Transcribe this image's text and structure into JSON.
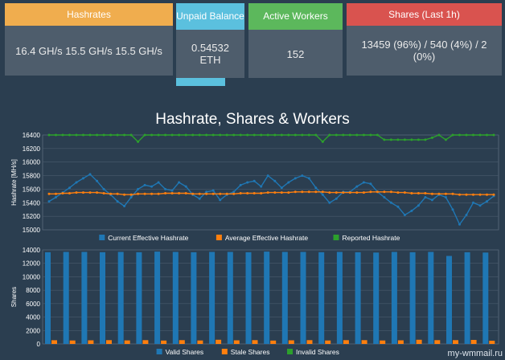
{
  "cards": {
    "hashrates": {
      "title": "Hashrates",
      "value": "16.4 GH/s  15.5 GH/s   15.5 GH/s",
      "color": "#f0ad4e"
    },
    "unpaid": {
      "title": "Unpaid Balance",
      "value": "0.54532 ETH",
      "color": "#5bc0de"
    },
    "workers": {
      "title": "Active Workers",
      "value": "152",
      "color": "#5cb85c"
    },
    "shares": {
      "title": "Shares (Last 1h)",
      "value": "13459 (96%) / 540 (4%) / 2 (0%)",
      "color": "#d9534f"
    }
  },
  "charts_title": "Hashrate, Shares & Workers",
  "watermark": "my-wmmail.ru",
  "chart_data": [
    {
      "type": "line",
      "ylabel": "Hashrate [MH/s]",
      "ylim": [
        15000,
        16400
      ],
      "yticks": [
        15000,
        15200,
        15400,
        15600,
        15800,
        16000,
        16200,
        16400
      ],
      "grid": true,
      "legend_position": "bottom",
      "series": [
        {
          "name": "Current Effective Hashrate",
          "color": "#1f77b4",
          "values": [
            15420,
            15480,
            15550,
            15620,
            15700,
            15760,
            15820,
            15720,
            15600,
            15520,
            15420,
            15350,
            15480,
            15600,
            15660,
            15640,
            15700,
            15600,
            15580,
            15700,
            15640,
            15520,
            15460,
            15560,
            15580,
            15440,
            15520,
            15560,
            15660,
            15700,
            15720,
            15640,
            15800,
            15720,
            15620,
            15700,
            15760,
            15800,
            15760,
            15620,
            15520,
            15400,
            15460,
            15560,
            15560,
            15640,
            15700,
            15680,
            15560,
            15480,
            15400,
            15340,
            15220,
            15280,
            15360,
            15480,
            15440,
            15520,
            15480,
            15300,
            15080,
            15220,
            15400,
            15360,
            15420,
            15500
          ]
        },
        {
          "name": "Average Effective Hashrate",
          "color": "#ff7f0e",
          "values": [
            15530,
            15530,
            15540,
            15540,
            15550,
            15550,
            15550,
            15550,
            15540,
            15530,
            15530,
            15520,
            15520,
            15530,
            15530,
            15530,
            15530,
            15540,
            15540,
            15540,
            15540,
            15530,
            15530,
            15530,
            15530,
            15530,
            15530,
            15530,
            15540,
            15540,
            15540,
            15540,
            15550,
            15550,
            15550,
            15550,
            15560,
            15560,
            15560,
            15560,
            15560,
            15550,
            15550,
            15550,
            15550,
            15550,
            15550,
            15560,
            15560,
            15560,
            15560,
            15550,
            15550,
            15540,
            15540,
            15540,
            15530,
            15530,
            15530,
            15530,
            15520,
            15520,
            15520,
            15520,
            15520,
            15520
          ]
        },
        {
          "name": "Reported Hashrate",
          "color": "#2ca02c",
          "values": [
            16400,
            16400,
            16400,
            16400,
            16400,
            16400,
            16400,
            16400,
            16400,
            16400,
            16400,
            16400,
            16400,
            16300,
            16400,
            16400,
            16400,
            16400,
            16400,
            16400,
            16400,
            16400,
            16400,
            16400,
            16400,
            16400,
            16400,
            16400,
            16400,
            16400,
            16400,
            16400,
            16400,
            16400,
            16400,
            16400,
            16400,
            16400,
            16400,
            16400,
            16300,
            16400,
            16400,
            16400,
            16400,
            16400,
            16400,
            16400,
            16400,
            16330,
            16330,
            16330,
            16330,
            16330,
            16330,
            16330,
            16360,
            16400,
            16330,
            16400,
            16400,
            16400,
            16400,
            16400,
            16400,
            16400
          ]
        }
      ]
    },
    {
      "type": "bar",
      "ylabel": "Shares",
      "ylim": [
        0,
        14000
      ],
      "yticks": [
        0,
        2000,
        4000,
        6000,
        8000,
        10000,
        12000,
        14000
      ],
      "grid": true,
      "legend_position": "bottom",
      "series": [
        {
          "name": "Valid Shares",
          "color": "#1f77b4",
          "values": [
            13650,
            13700,
            13700,
            13650,
            13700,
            13650,
            13750,
            13700,
            13650,
            13700,
            13700,
            13650,
            13750,
            13700,
            13700,
            13650,
            13700,
            13650,
            13600,
            13700,
            13650,
            13700,
            13100,
            13650,
            13600
          ]
        },
        {
          "name": "Stale Shares",
          "color": "#ff7f0e",
          "values": [
            550,
            520,
            540,
            560,
            530,
            560,
            500,
            560,
            520,
            620,
            540,
            560,
            500,
            540,
            560,
            520,
            560,
            560,
            520,
            540,
            620,
            560,
            560,
            600,
            480
          ]
        },
        {
          "name": "Invalid Shares",
          "color": "#2ca02c",
          "values": [
            0,
            0,
            0,
            0,
            0,
            0,
            0,
            0,
            0,
            0,
            0,
            0,
            0,
            0,
            0,
            0,
            0,
            0,
            0,
            0,
            0,
            0,
            0,
            0,
            0
          ]
        }
      ]
    }
  ]
}
